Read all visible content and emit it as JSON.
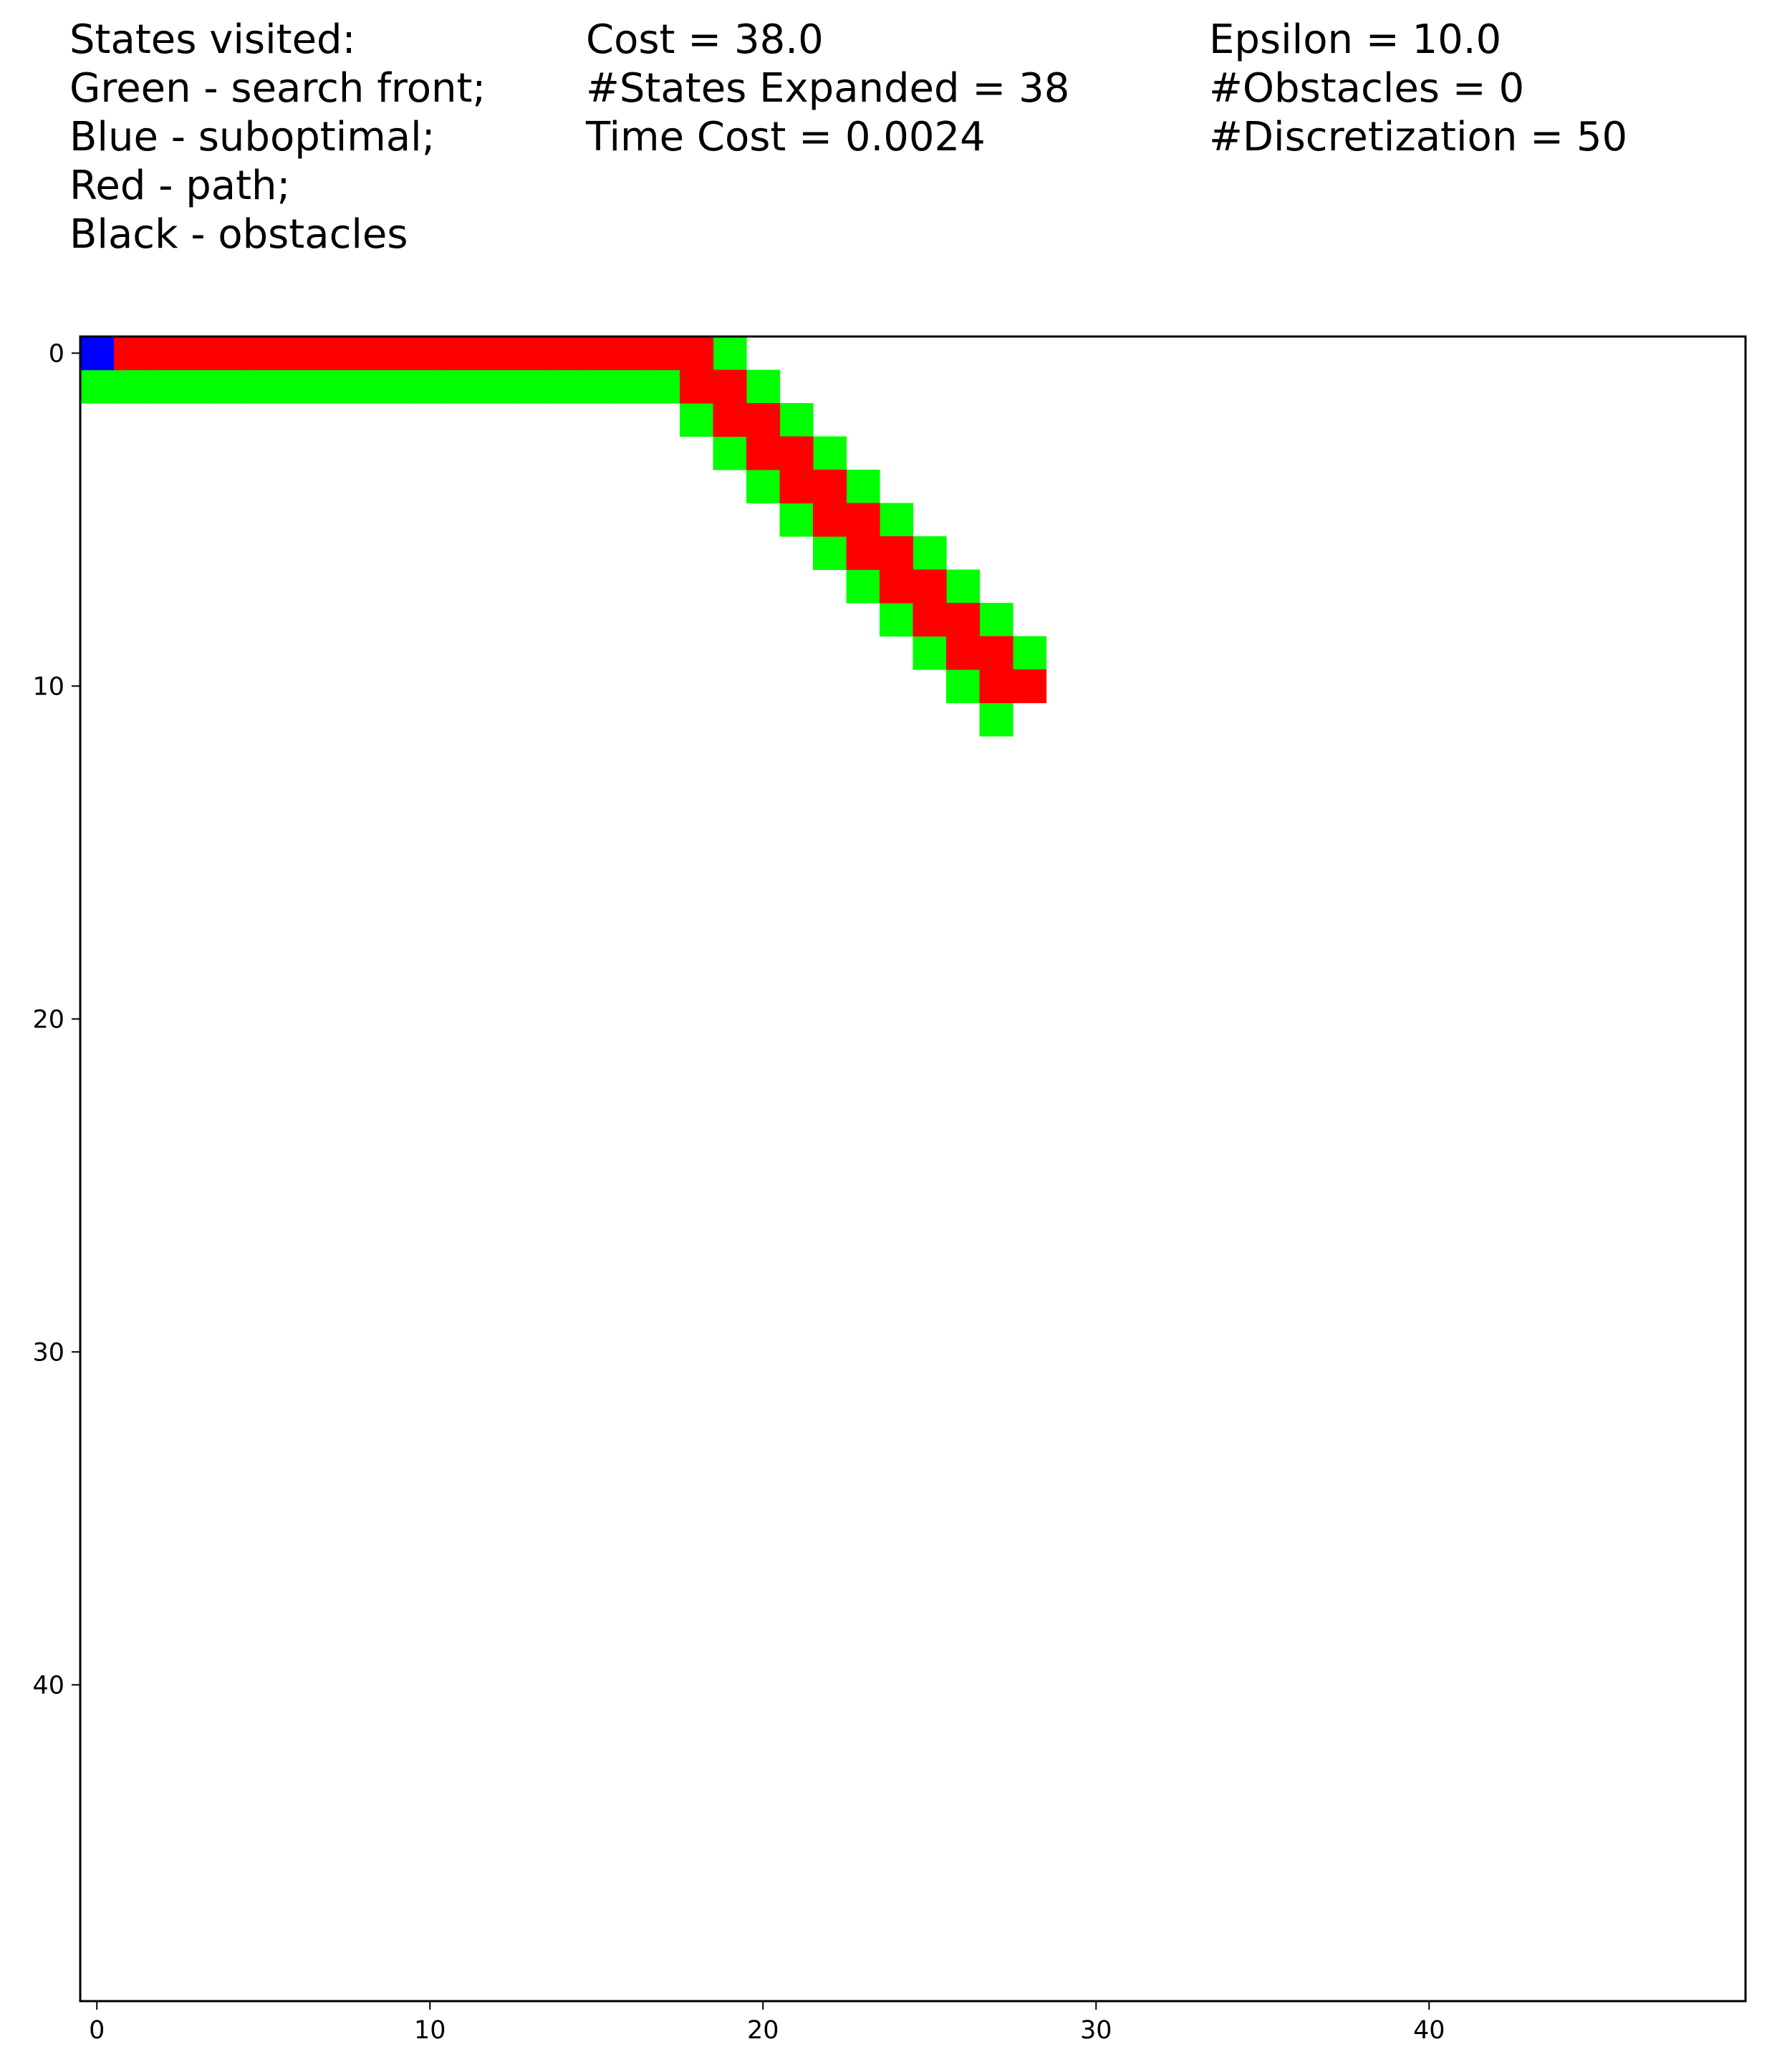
{
  "header": {
    "col1": [
      "States visited:",
      "Green - search front;",
      "Blue - suboptimal;",
      "Red - path;",
      "Black - obstacles"
    ],
    "col2": [
      "Cost = 38.0",
      "#States Expanded = 38",
      "Time Cost = 0.0024"
    ],
    "col3": [
      "Epsilon = 10.0",
      "#Obstacles = 0",
      "#Discretization = 50"
    ]
  },
  "chart_data": {
    "type": "heatmap",
    "grid_size": 50,
    "xlim": [
      -0.5,
      49.5
    ],
    "ylim": [
      49.5,
      -0.5
    ],
    "y_inverted": true,
    "xticks": [
      0,
      10,
      20,
      30,
      40
    ],
    "yticks": [
      0,
      10,
      20,
      30,
      40
    ],
    "grid": false,
    "colors": {
      "background": "#ffffff",
      "search_front": "#00ff00",
      "suboptimal": "#0000ff",
      "path": "#ff0000",
      "obstacle": "#000000"
    },
    "cells": {
      "suboptimal": [
        [
          0,
          0
        ]
      ],
      "path": [
        [
          1,
          0
        ],
        [
          2,
          0
        ],
        [
          3,
          0
        ],
        [
          4,
          0
        ],
        [
          5,
          0
        ],
        [
          6,
          0
        ],
        [
          7,
          0
        ],
        [
          8,
          0
        ],
        [
          9,
          0
        ],
        [
          10,
          0
        ],
        [
          11,
          0
        ],
        [
          12,
          0
        ],
        [
          13,
          0
        ],
        [
          14,
          0
        ],
        [
          15,
          0
        ],
        [
          16,
          0
        ],
        [
          17,
          0
        ],
        [
          18,
          0
        ],
        [
          18,
          1
        ],
        [
          19,
          1
        ],
        [
          19,
          2
        ],
        [
          20,
          2
        ],
        [
          20,
          3
        ],
        [
          21,
          3
        ],
        [
          21,
          4
        ],
        [
          22,
          4
        ],
        [
          22,
          5
        ],
        [
          23,
          5
        ],
        [
          23,
          6
        ],
        [
          24,
          6
        ],
        [
          24,
          7
        ],
        [
          25,
          7
        ],
        [
          25,
          8
        ],
        [
          26,
          8
        ],
        [
          26,
          9
        ],
        [
          27,
          9
        ],
        [
          27,
          10
        ],
        [
          28,
          10
        ]
      ],
      "search_front": [
        [
          19,
          0
        ],
        [
          0,
          1
        ],
        [
          1,
          1
        ],
        [
          2,
          1
        ],
        [
          3,
          1
        ],
        [
          4,
          1
        ],
        [
          5,
          1
        ],
        [
          6,
          1
        ],
        [
          7,
          1
        ],
        [
          8,
          1
        ],
        [
          9,
          1
        ],
        [
          10,
          1
        ],
        [
          11,
          1
        ],
        [
          12,
          1
        ],
        [
          13,
          1
        ],
        [
          14,
          1
        ],
        [
          15,
          1
        ],
        [
          16,
          1
        ],
        [
          17,
          1
        ],
        [
          20,
          1
        ],
        [
          18,
          2
        ],
        [
          21,
          2
        ],
        [
          19,
          3
        ],
        [
          22,
          3
        ],
        [
          20,
          4
        ],
        [
          23,
          4
        ],
        [
          21,
          5
        ],
        [
          24,
          5
        ],
        [
          22,
          6
        ],
        [
          25,
          6
        ],
        [
          23,
          7
        ],
        [
          26,
          7
        ],
        [
          24,
          8
        ],
        [
          27,
          8
        ],
        [
          25,
          9
        ],
        [
          28,
          9
        ],
        [
          26,
          10
        ],
        [
          27,
          11
        ]
      ],
      "obstacle": []
    }
  }
}
